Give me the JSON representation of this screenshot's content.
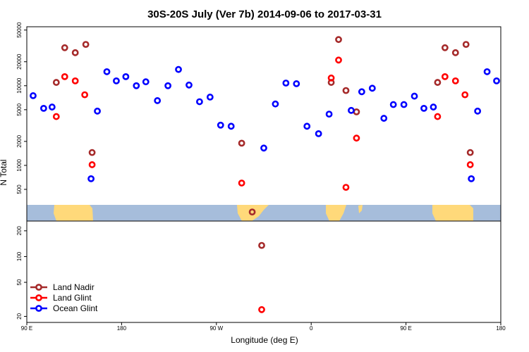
{
  "chart_data": {
    "type": "scatter",
    "title": "30S-20S July (Ver 7b)   2014-09-06 to 2017-03-31",
    "xlabel": "Longitude (deg E)",
    "ylabel": "N Total",
    "x_scale": "longitude",
    "y_scale": "log",
    "xlim": [
      90,
      540
    ],
    "xticks": [
      {
        "value": 90,
        "label": "90 E"
      },
      {
        "value": 180,
        "label": "180"
      },
      {
        "value": 270,
        "label": "90 W"
      },
      {
        "value": 360,
        "label": "0"
      },
      {
        "value": 450,
        "label": "90 E"
      },
      {
        "value": 540,
        "label": "180"
      }
    ],
    "panels": [
      {
        "name": "upper",
        "ylim": [
          200,
          55000
        ],
        "yticks": [
          {
            "value": 500,
            "label": "500"
          },
          {
            "value": 1000,
            "label": "1000"
          },
          {
            "value": 2000,
            "label": "2000"
          },
          {
            "value": 5000,
            "label": "5000"
          },
          {
            "value": 10000,
            "label": "10000"
          },
          {
            "value": 20000,
            "label": "20000"
          },
          {
            "value": 50000,
            "label": "50000"
          }
        ]
      },
      {
        "name": "lower",
        "ylim": [
          17,
          260
        ],
        "yticks": [
          {
            "value": 20,
            "label": "20"
          },
          {
            "value": 50,
            "label": "50"
          },
          {
            "value": 100,
            "label": "100"
          },
          {
            "value": 200,
            "label": "200"
          }
        ]
      }
    ],
    "series": [
      {
        "name": "Land Nadir",
        "color": "#a52a2a",
        "points": [
          [
            118,
            11000
          ],
          [
            126,
            30000
          ],
          [
            136,
            26000
          ],
          [
            146,
            33000
          ],
          [
            152,
            1450
          ],
          [
            294,
            1900
          ],
          [
            304,
            260
          ],
          [
            313,
            135
          ],
          [
            379,
            11000
          ],
          [
            386,
            38000
          ],
          [
            393,
            8700
          ],
          [
            403,
            4700
          ],
          [
            480,
            11000
          ],
          [
            487,
            30000
          ],
          [
            497,
            26000
          ],
          [
            507,
            33000
          ],
          [
            511,
            1450
          ]
        ]
      },
      {
        "name": "Land Glint",
        "color": "#ff0000",
        "points": [
          [
            118,
            4100
          ],
          [
            126,
            13000
          ],
          [
            136,
            11500
          ],
          [
            145,
            7700
          ],
          [
            152,
            1020
          ],
          [
            294,
            600
          ],
          [
            313,
            24
          ],
          [
            379,
            12500
          ],
          [
            386,
            21000
          ],
          [
            393,
            530
          ],
          [
            403,
            2200
          ],
          [
            480,
            4100
          ],
          [
            487,
            13000
          ],
          [
            497,
            11500
          ],
          [
            506,
            7700
          ],
          [
            511,
            1020
          ]
        ]
      },
      {
        "name": "Ocean Glint",
        "color": "#0000ff",
        "points": [
          [
            96,
            7500
          ],
          [
            106,
            5200
          ],
          [
            114,
            5400
          ],
          [
            151,
            680
          ],
          [
            157,
            4800
          ],
          [
            166,
            15000
          ],
          [
            175,
            11500
          ],
          [
            184,
            13000
          ],
          [
            194,
            10000
          ],
          [
            203,
            11200
          ],
          [
            214,
            6500
          ],
          [
            224,
            10000
          ],
          [
            234,
            16000
          ],
          [
            244,
            10200
          ],
          [
            254,
            6300
          ],
          [
            264,
            7200
          ],
          [
            274,
            3200
          ],
          [
            284,
            3100
          ],
          [
            315,
            1650
          ],
          [
            326,
            5900
          ],
          [
            336,
            10800
          ],
          [
            346,
            10600
          ],
          [
            356,
            3100
          ],
          [
            367,
            2500
          ],
          [
            377,
            4400
          ],
          [
            398,
            4900
          ],
          [
            408,
            8400
          ],
          [
            418,
            9300
          ],
          [
            429,
            3900
          ],
          [
            438,
            5800
          ],
          [
            448,
            5800
          ],
          [
            458,
            7400
          ],
          [
            467,
            5200
          ],
          [
            476,
            5400
          ],
          [
            512,
            680
          ],
          [
            518,
            4800
          ],
          [
            527,
            15000
          ],
          [
            536,
            11500
          ]
        ]
      }
    ],
    "legend": {
      "position": "bottom-left"
    }
  }
}
